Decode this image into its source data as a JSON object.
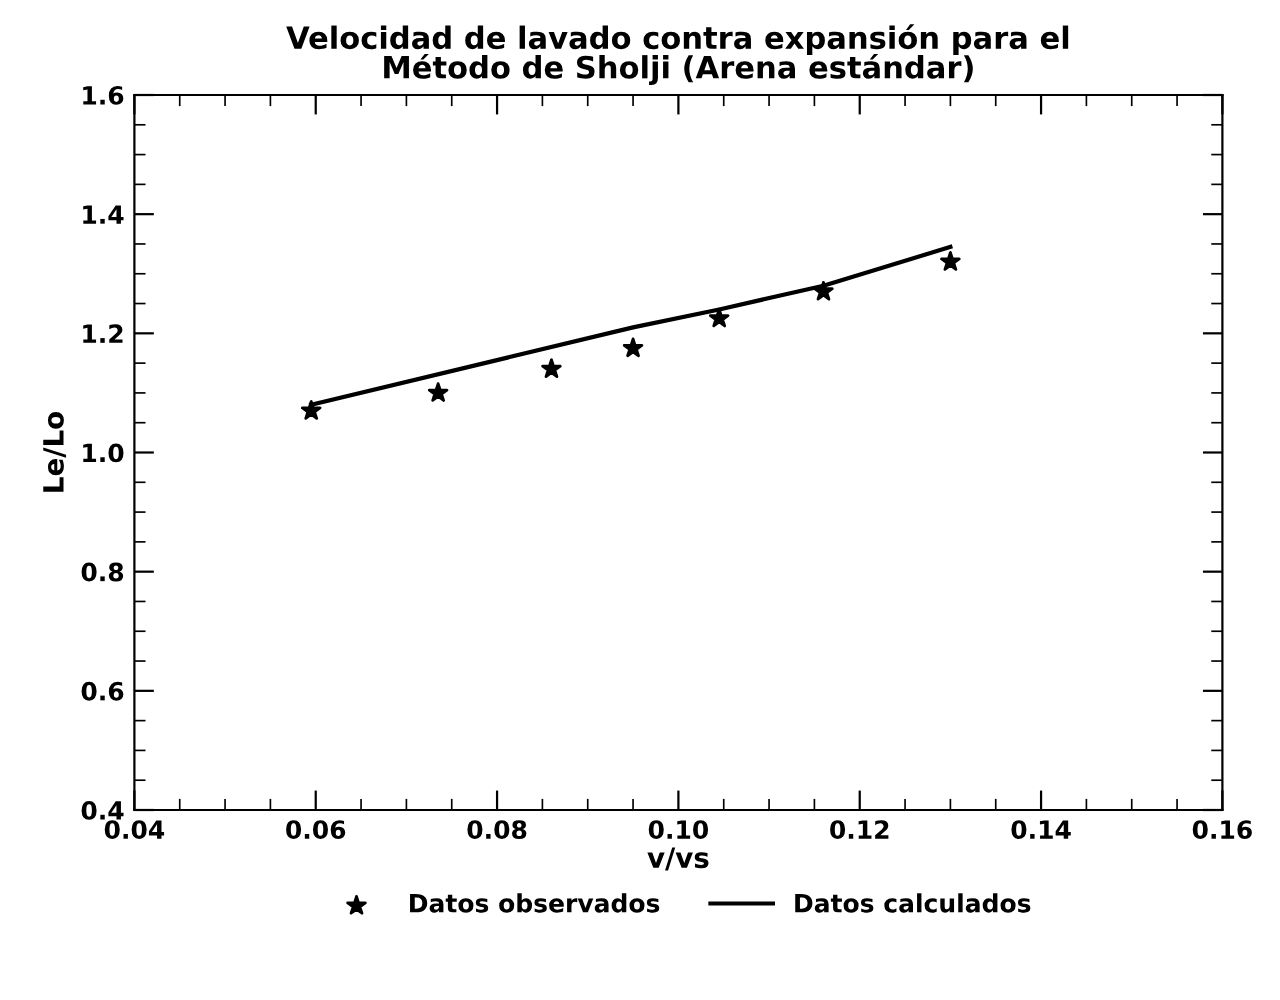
{
  "chart_data": {
    "type": "scatter",
    "title": "Velocidad de lavado contra expansión para el\nMétodo de Sholji (Arena estándar)",
    "xlabel": "v/vs",
    "ylabel": "Le/Lo",
    "xlim": [
      0.04,
      0.16
    ],
    "xticks": [
      {
        "value": 0.04,
        "label": "0.04"
      },
      {
        "value": 0.06,
        "label": "0.06"
      },
      {
        "value": 0.08,
        "label": "0.08"
      },
      {
        "value": 0.1,
        "label": "0.10"
      },
      {
        "value": 0.12,
        "label": "0.12"
      },
      {
        "value": 0.14,
        "label": "0.14"
      },
      {
        "value": 0.16,
        "label": "0.16"
      }
    ],
    "ylim": [
      0.4,
      1.6
    ],
    "yticks": [
      0.4,
      0.6,
      0.8,
      {
        "value": 1.0,
        "label": "1.0"
      },
      1.2,
      1.4,
      1.6
    ],
    "grid": false,
    "legend": "bottom",
    "series": [
      {
        "name": "Datos observados",
        "marker": "star",
        "color": "#000000",
        "x": [
          0.0595,
          0.0735,
          0.086,
          0.095,
          0.1045,
          0.116,
          0.13
        ],
        "values": [
          1.07,
          1.1,
          1.14,
          1.175,
          1.225,
          1.27,
          1.32
        ]
      },
      {
        "name": "Datos calculados",
        "type": "line",
        "marker": "none",
        "line_style": "solid",
        "color": "#000000",
        "x": [
          0.0595,
          0.095,
          0.1045,
          0.116,
          0.13
        ],
        "values": [
          1.08,
          1.21,
          1.24,
          1.28,
          1.345
        ]
      }
    ]
  }
}
